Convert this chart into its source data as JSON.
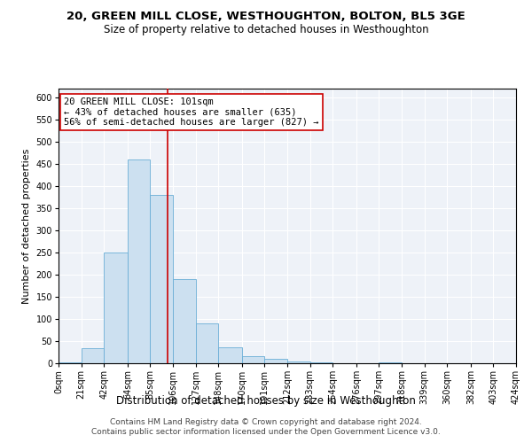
{
  "title1": "20, GREEN MILL CLOSE, WESTHOUGHTON, BOLTON, BL5 3GE",
  "title2": "Size of property relative to detached houses in Westhoughton",
  "xlabel": "Distribution of detached houses by size in Westhoughton",
  "ylabel": "Number of detached properties",
  "footer1": "Contains HM Land Registry data © Crown copyright and database right 2024.",
  "footer2": "Contains public sector information licensed under the Open Government Licence v3.0.",
  "bin_edges": [
    0,
    21,
    42,
    64,
    85,
    106,
    127,
    148,
    170,
    191,
    212,
    233,
    254,
    276,
    297,
    318,
    339,
    360,
    382,
    403,
    424
  ],
  "bin_labels": [
    "0sqm",
    "21sqm",
    "42sqm",
    "64sqm",
    "85sqm",
    "106sqm",
    "127sqm",
    "148sqm",
    "170sqm",
    "191sqm",
    "212sqm",
    "233sqm",
    "254sqm",
    "276sqm",
    "297sqm",
    "318sqm",
    "339sqm",
    "360sqm",
    "382sqm",
    "403sqm",
    "424sqm"
  ],
  "counts": [
    2,
    35,
    250,
    460,
    380,
    190,
    90,
    37,
    17,
    10,
    5,
    3,
    1,
    0,
    2,
    0,
    0,
    1,
    0,
    1
  ],
  "bar_color": "#cce0f0",
  "bar_edge_color": "#6aaed6",
  "vline_x": 101,
  "vline_color": "#cc0000",
  "annotation_line1": "20 GREEN MILL CLOSE: 101sqm",
  "annotation_line2": "← 43% of detached houses are smaller (635)",
  "annotation_line3": "56% of semi-detached houses are larger (827) →",
  "annotation_box_color": "white",
  "annotation_box_edge": "#cc0000",
  "ylim": [
    0,
    620
  ],
  "yticks": [
    0,
    50,
    100,
    150,
    200,
    250,
    300,
    350,
    400,
    450,
    500,
    550,
    600
  ],
  "bg_color": "#eef2f8",
  "title1_fontsize": 9.5,
  "title2_fontsize": 8.5,
  "xlabel_fontsize": 8.5,
  "ylabel_fontsize": 8,
  "tick_fontsize": 7,
  "annotation_fontsize": 7.5,
  "footer_fontsize": 6.5
}
